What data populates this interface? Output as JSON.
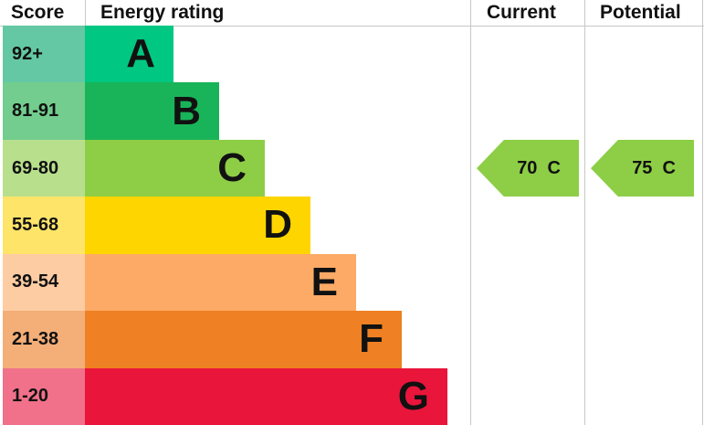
{
  "chart_data": {
    "type": "table",
    "headers": {
      "score": "Score",
      "rating": "Energy rating",
      "current": "Current",
      "potential": "Potential"
    },
    "bands": [
      {
        "score": "92+",
        "letter": "A",
        "color": "#00c781",
        "score_color": "#64c8a4"
      },
      {
        "score": "81-91",
        "letter": "B",
        "color": "#19b459",
        "score_color": "#72cd8e"
      },
      {
        "score": "69-80",
        "letter": "C",
        "color": "#8dce46",
        "score_color": "#b8e08c"
      },
      {
        "score": "55-68",
        "letter": "D",
        "color": "#ffd500",
        "score_color": "#ffe46a"
      },
      {
        "score": "39-54",
        "letter": "E",
        "color": "#fcaa65",
        "score_color": "#fdcca3"
      },
      {
        "score": "21-38",
        "letter": "F",
        "color": "#ef8023",
        "score_color": "#f4ae78"
      },
      {
        "score": "1-20",
        "letter": "G",
        "color": "#e9153b",
        "score_color": "#f07189"
      }
    ],
    "current": {
      "value": 70,
      "band": "C",
      "label": "70  C"
    },
    "potential": {
      "value": 75,
      "band": "C",
      "label": "75  C"
    }
  }
}
